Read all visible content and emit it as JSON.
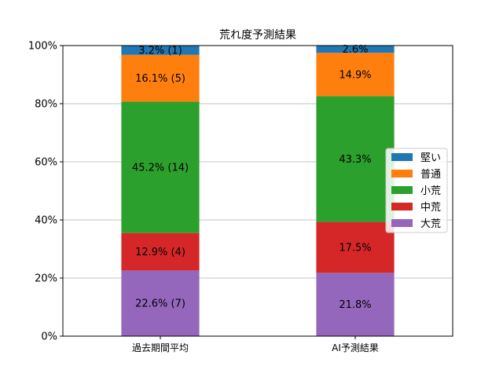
{
  "chart_data": {
    "type": "bar",
    "stacked": true,
    "title": "荒れ度予測結果",
    "xlabel": "",
    "ylabel": "",
    "categories": [
      "過去期間平均",
      "AI予測結果"
    ],
    "ylim": [
      0,
      100
    ],
    "yticks": [
      0,
      20,
      40,
      60,
      80,
      100
    ],
    "ytick_labels": [
      "0%",
      "20%",
      "40%",
      "60%",
      "80%",
      "100%"
    ],
    "grid": "horizontal",
    "legend_position": "right",
    "series": [
      {
        "name": "大荒",
        "color": "#9467bd",
        "values": [
          22.6,
          21.8
        ],
        "labels": [
          "22.6% (7)",
          "21.8%"
        ]
      },
      {
        "name": "中荒",
        "color": "#d62728",
        "values": [
          12.9,
          17.5
        ],
        "labels": [
          "12.9% (4)",
          "17.5%"
        ]
      },
      {
        "name": "小荒",
        "color": "#2ca02c",
        "values": [
          45.2,
          43.3
        ],
        "labels": [
          "45.2% (14)",
          "43.3%"
        ]
      },
      {
        "name": "普通",
        "color": "#ff7f0e",
        "values": [
          16.1,
          14.9
        ],
        "labels": [
          "16.1% (5)",
          "14.9%"
        ]
      },
      {
        "name": "堅い",
        "color": "#1f77b4",
        "values": [
          3.2,
          2.6
        ],
        "labels": [
          "3.2% (1)",
          "2.6%"
        ]
      }
    ],
    "legend_order": [
      "堅い",
      "普通",
      "小荒",
      "中荒",
      "大荒"
    ]
  }
}
